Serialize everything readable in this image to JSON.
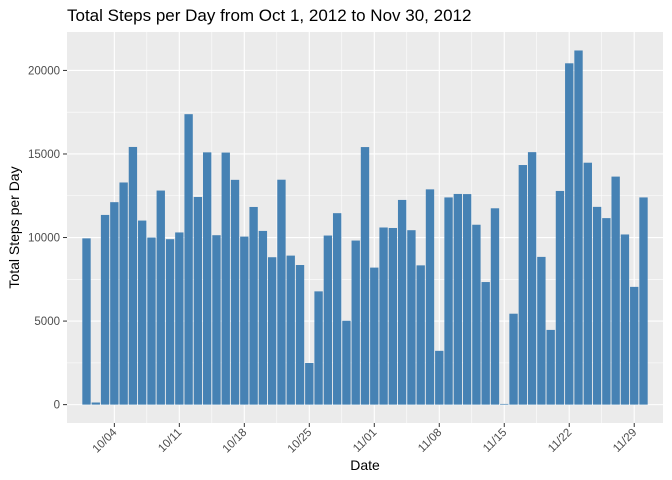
{
  "chart_data": {
    "type": "bar",
    "title": "Total Steps per Day from Oct 1, 2012 to Nov 30, 2012",
    "xlabel": "Date",
    "ylabel": "Total Steps per Day",
    "x_start": "2012-10-01",
    "x_end": "2012-11-30",
    "x_ticks": [
      "10/04",
      "10/11",
      "10/18",
      "10/25",
      "11/01",
      "11/08",
      "11/15",
      "11/22",
      "11/29"
    ],
    "x_tick_dates": [
      "2012-10-04",
      "2012-10-11",
      "2012-10-18",
      "2012-10-25",
      "2012-11-01",
      "2012-11-08",
      "2012-11-15",
      "2012-11-22",
      "2012-11-29"
    ],
    "y_ticks": [
      0,
      5000,
      10000,
      15000,
      20000
    ],
    "ylim": [
      -1100,
      22300
    ],
    "grid": true,
    "bar_color": "#4682b4",
    "panel_color": "#ebebeb",
    "values": [
      9950,
      126,
      11352,
      12116,
      13294,
      15420,
      11015,
      10000,
      12811,
      9900,
      10304,
      17382,
      12426,
      15098,
      10139,
      15084,
      13452,
      10056,
      11829,
      10395,
      8821,
      13460,
      8918,
      8355,
      2492,
      6778,
      10119,
      11458,
      5018,
      9819,
      15414,
      8200,
      10600,
      10571,
      12250,
      10439,
      8334,
      12883,
      3219,
      12400,
      12608,
      12600,
      10765,
      7336,
      11750,
      41,
      5441,
      14339,
      15110,
      8841,
      4472,
      12787,
      20427,
      21194,
      14478,
      11834,
      11162,
      13646,
      10183,
      7047,
      12400
    ]
  }
}
